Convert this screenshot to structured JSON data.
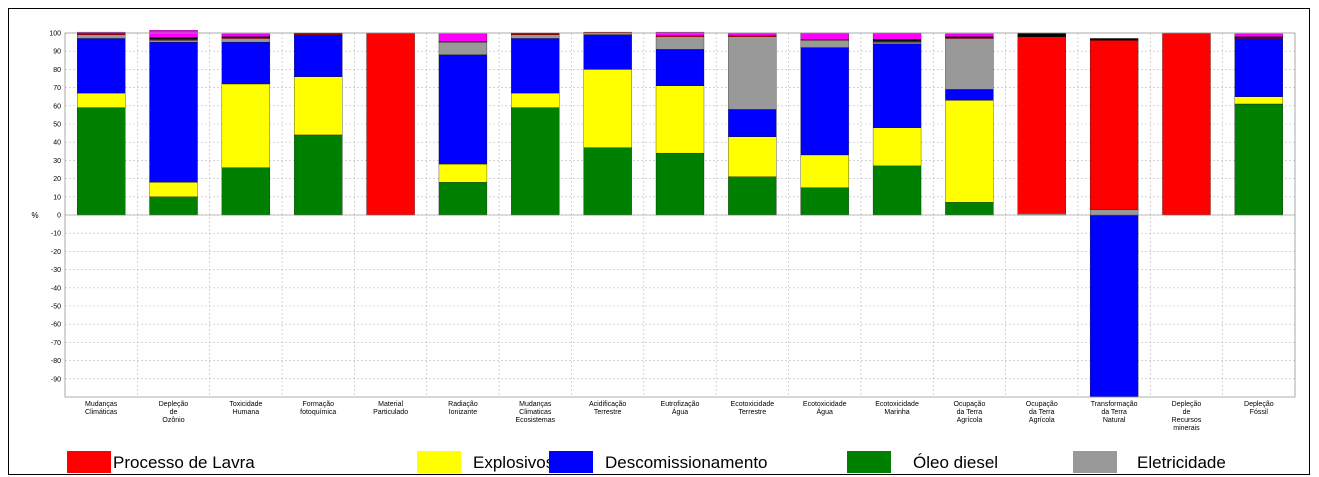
{
  "chart_data": {
    "type": "bar",
    "stacked": true,
    "ylabel": "%",
    "ylim": [
      -100,
      100
    ],
    "yticks": [
      -90,
      -80,
      -70,
      -60,
      -50,
      -40,
      -30,
      -20,
      -10,
      0,
      10,
      20,
      30,
      40,
      50,
      60,
      70,
      80,
      90,
      100
    ],
    "grid": true,
    "legend_position": "bottom",
    "categories": [
      [
        "Mudanças",
        "Climáticas"
      ],
      [
        "Depleção",
        "de",
        "Ozônio"
      ],
      [
        "Toxicidade",
        "Humana"
      ],
      [
        "Formação",
        "fotoquímica"
      ],
      [
        "Material",
        "Particulado"
      ],
      [
        "Radiação",
        "Ionizante"
      ],
      [
        "Mudanças",
        "Climaticas",
        "Ecosistemas"
      ],
      [
        "Acidificação",
        "Terrestre"
      ],
      [
        "Eutrofização",
        "Água"
      ],
      [
        "Ecotoxicidade",
        "Terrestre"
      ],
      [
        "Ecotoxicidade",
        "Água"
      ],
      [
        "Ecotoxicidade",
        "Marinha"
      ],
      [
        "Ocupação",
        "da Terra",
        "Agrícola"
      ],
      [
        "Ocupação",
        "da Terra",
        "Agrícola"
      ],
      [
        "Transformação",
        "da Terra",
        "Natural"
      ],
      [
        "Depleção",
        "de",
        "Recursos",
        "minerais"
      ],
      [
        "Depleção",
        "Fóssil"
      ]
    ],
    "series": [
      {
        "name": "Óleo diesel",
        "color": "#008000",
        "values": [
          59,
          10,
          26,
          44,
          0,
          18,
          59,
          37,
          34,
          21,
          15,
          27,
          7,
          0,
          0,
          0,
          61
        ]
      },
      {
        "name": "Explosivos",
        "color": "#ffff00",
        "values": [
          8,
          8,
          46,
          32,
          0,
          10,
          8,
          43,
          37,
          22,
          18,
          21,
          56,
          0,
          0,
          0,
          4
        ]
      },
      {
        "name": "Descomissionamento",
        "color": "#0000ff",
        "values": [
          30,
          77,
          23,
          23,
          0,
          60,
          30,
          19,
          20,
          15,
          59,
          46,
          6,
          0,
          -100,
          0,
          32
        ]
      },
      {
        "name": "Eletricidade",
        "color": "#999999",
        "values": [
          2,
          1,
          2,
          0,
          0,
          7,
          2,
          1,
          7,
          40,
          4,
          1,
          28,
          1,
          3,
          0,
          0
        ]
      },
      {
        "name": "Processo de Lavra",
        "color": "#ff0000",
        "values": [
          0.5,
          0.5,
          0.5,
          0.5,
          100,
          0.5,
          0.5,
          0.5,
          0.5,
          0.5,
          0.5,
          0.5,
          0.5,
          97,
          93,
          100,
          0.5
        ]
      },
      {
        "name": "",
        "color": "#000000",
        "values": [
          0.5,
          1,
          0.5,
          0.5,
          0,
          0,
          0.5,
          0,
          0,
          0,
          0,
          1,
          0.5,
          2,
          1,
          0,
          0.5
        ]
      },
      {
        "name": "",
        "color": "#ff00ff",
        "values": [
          0.5,
          4,
          1.5,
          0,
          0,
          4,
          0,
          0,
          2,
          1.5,
          3.5,
          3.5,
          1.5,
          0,
          0,
          0,
          1.5
        ]
      }
    ],
    "legend": [
      {
        "label": "Processo de Lavra",
        "color": "#ff0000"
      },
      {
        "label": "Explosivos",
        "color": "#ffff00"
      },
      {
        "label": "Descomissionamento",
        "color": "#0000ff"
      },
      {
        "label": "Óleo diesel",
        "color": "#008000"
      },
      {
        "label": "Eletricidade",
        "color": "#999999"
      }
    ]
  }
}
